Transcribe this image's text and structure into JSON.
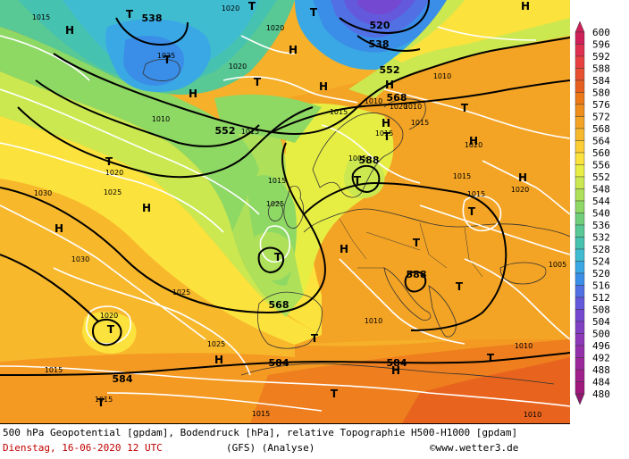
{
  "footer": {
    "description": "500 hPa Geopotential [gpdam], Bodendruck [hPa], relative Topographie H500-H1000 [gpdam]",
    "date": "Dienstag, 16-06-2020  12 UTC",
    "model": "(GFS)   (Analyse)",
    "copyright": "©www.wetter3.de"
  },
  "legend": {
    "values": [
      "600",
      "596",
      "592",
      "588",
      "584",
      "580",
      "576",
      "572",
      "568",
      "564",
      "560",
      "556",
      "552",
      "548",
      "544",
      "540",
      "536",
      "532",
      "528",
      "524",
      "520",
      "516",
      "512",
      "508",
      "504",
      "500",
      "496",
      "492",
      "488",
      "484",
      "480"
    ],
    "colors": [
      "#d0205a",
      "#e03050",
      "#e84040",
      "#e85030",
      "#e86020",
      "#ec7818",
      "#f08e1c",
      "#f4a424",
      "#f8b82c",
      "#fcce34",
      "#fce23c",
      "#eaee44",
      "#cce850",
      "#aee05a",
      "#8ed864",
      "#70ce7a",
      "#58c894",
      "#46c2b0",
      "#40bcd0",
      "#3aa8e4",
      "#3a8ee8",
      "#5070e4",
      "#6458dc",
      "#7448d0",
      "#8040c4",
      "#8c38b8",
      "#9430ac",
      "#9c289c",
      "#a0208c",
      "#a0187c",
      "#901870"
    ]
  },
  "map_labels": {
    "geopotential": [
      "538",
      "520",
      "538",
      "552",
      "568",
      "552",
      "588",
      "568",
      "588",
      "584",
      "584",
      "584"
    ],
    "pressure": [
      "1015",
      "1020",
      "1020",
      "1025",
      "1020",
      "1010",
      "1005",
      "1010",
      "1015",
      "1015",
      "1020",
      "1015",
      "1020",
      "1015",
      "1015",
      "1020",
      "1015",
      "1025",
      "1030",
      "1030",
      "1025",
      "1020",
      "1025",
      "1025",
      "1015",
      "1015",
      "1015",
      "1010",
      "1010",
      "1010",
      "1020",
      "1005",
      "1010",
      "1015",
      "1010"
    ],
    "highs": [
      "H",
      "H",
      "H",
      "H",
      "H",
      "H",
      "H",
      "H",
      "H",
      "H",
      "H",
      "H",
      "H",
      "H"
    ],
    "lows": [
      "T",
      "T",
      "T",
      "T",
      "T",
      "T",
      "T",
      "T",
      "T",
      "T",
      "T",
      "T",
      "T",
      "T",
      "T",
      "T",
      "T",
      "T"
    ]
  }
}
